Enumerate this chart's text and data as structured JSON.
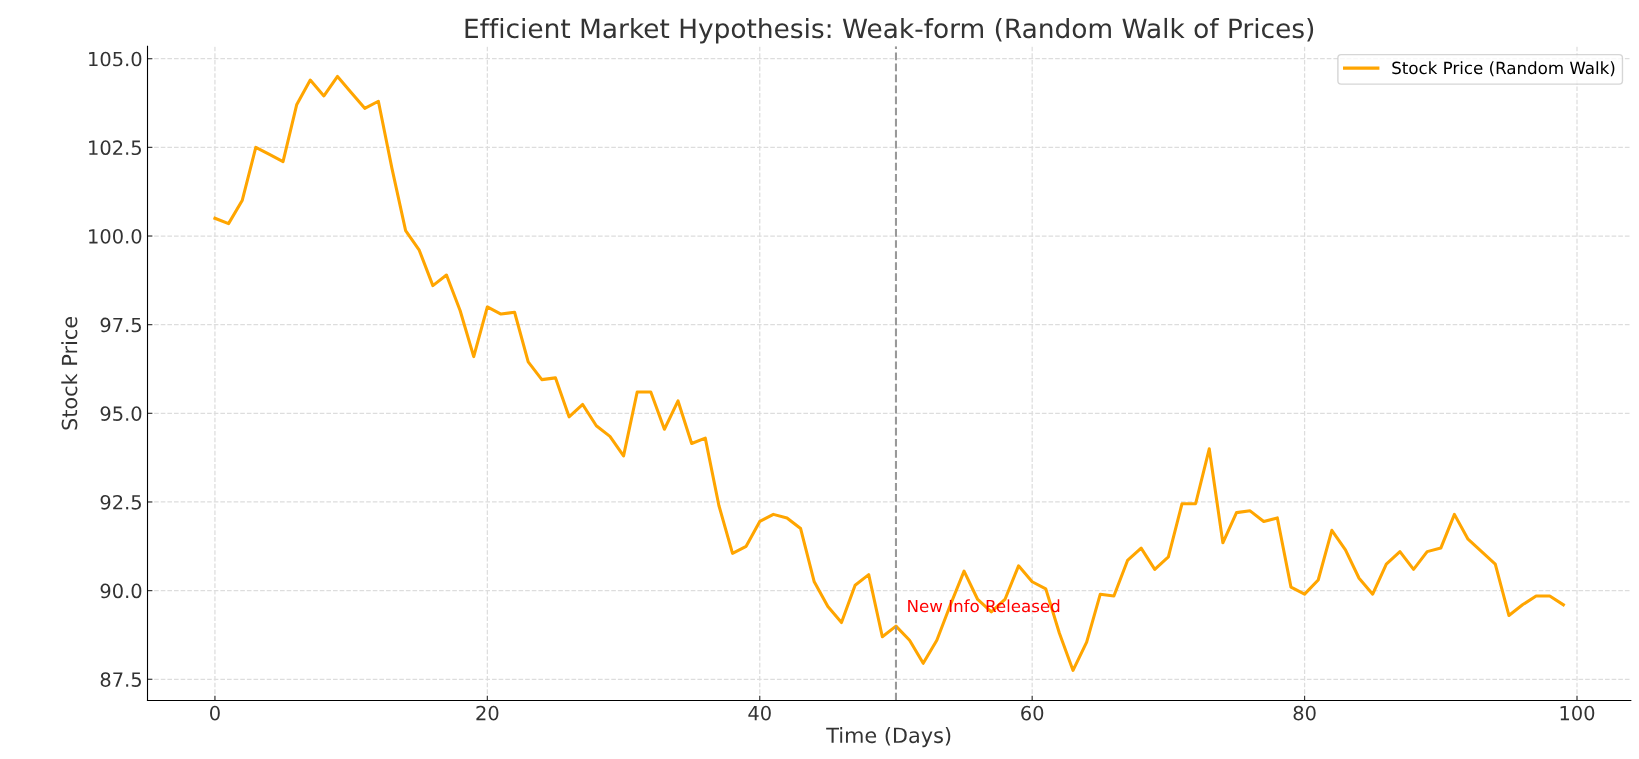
{
  "chart_data": {
    "type": "line",
    "title": "Efficient Market Hypothesis: Weak-form (Random Walk of Prices)",
    "xlabel": "Time (Days)",
    "ylabel": "Stock Price",
    "x": [
      0,
      1,
      2,
      3,
      4,
      5,
      6,
      7,
      8,
      9,
      10,
      11,
      12,
      13,
      14,
      15,
      16,
      17,
      18,
      19,
      20,
      21,
      22,
      23,
      24,
      25,
      26,
      27,
      28,
      29,
      30,
      31,
      32,
      33,
      34,
      35,
      36,
      37,
      38,
      39,
      40,
      41,
      42,
      43,
      44,
      45,
      46,
      47,
      48,
      49,
      50,
      51,
      52,
      53,
      54,
      55,
      56,
      57,
      58,
      59,
      60,
      61,
      62,
      63,
      64,
      65,
      66,
      67,
      68,
      69,
      70,
      71,
      72,
      73,
      74,
      75,
      76,
      77,
      78,
      79,
      80,
      81,
      82,
      83,
      84,
      85,
      86,
      87,
      88,
      89,
      90,
      91,
      92,
      93,
      94,
      95,
      96,
      97,
      98,
      99
    ],
    "series": [
      {
        "name": "Stock Price (Random Walk)",
        "color": "#ffa500",
        "values": [
          100.5,
          100.35,
          101.0,
          102.5,
          102.3,
          102.1,
          103.7,
          104.4,
          103.95,
          104.5,
          104.05,
          103.6,
          103.8,
          101.9,
          100.15,
          99.6,
          98.6,
          98.9,
          97.9,
          96.6,
          98.0,
          97.8,
          97.85,
          96.45,
          95.95,
          96.0,
          94.9,
          95.25,
          94.65,
          94.35,
          93.8,
          95.6,
          95.6,
          94.55,
          95.35,
          94.15,
          94.3,
          92.4,
          91.05,
          91.25,
          91.95,
          92.15,
          92.05,
          91.75,
          90.25,
          89.55,
          89.1,
          90.15,
          90.45,
          88.7,
          89.0,
          88.6,
          87.95,
          88.6,
          89.6,
          90.55,
          89.75,
          89.4,
          89.75,
          90.7,
          90.25,
          90.05,
          88.8,
          87.75,
          88.55,
          89.9,
          89.85,
          90.85,
          91.2,
          90.6,
          90.95,
          92.45,
          92.45,
          94.0,
          91.35,
          92.2,
          92.25,
          91.95,
          92.05,
          90.1,
          89.9,
          90.3,
          91.7,
          91.15,
          90.35,
          89.9,
          90.75,
          91.1,
          90.6,
          91.1,
          91.2,
          92.15,
          91.45,
          91.1,
          90.75,
          89.3,
          89.6,
          89.85,
          89.85,
          89.6
        ]
      }
    ],
    "xlim": [
      -4.95,
      103.95
    ],
    "ylim": [
      86.9,
      105.35
    ],
    "xticks": [
      0,
      20,
      40,
      60,
      80,
      100
    ],
    "yticks": [
      {
        "value": 87.5,
        "label": "87.5"
      },
      {
        "value": 90,
        "label": "90.0"
      },
      {
        "value": 92.5,
        "label": "92.5"
      },
      {
        "value": 95,
        "label": "95.0"
      },
      {
        "value": 97.5,
        "label": "97.5"
      },
      {
        "value": 100,
        "label": "100.0"
      },
      {
        "value": 102.5,
        "label": "102.5"
      },
      {
        "value": 105,
        "label": "105.0"
      }
    ],
    "ref_lines": [
      {
        "axis": "x",
        "value": 50,
        "color": "#999999",
        "line_style": "dashed",
        "label": "New Info Released"
      }
    ],
    "grid": true,
    "legend": "top right",
    "marker": "none",
    "line_style": "solid"
  }
}
